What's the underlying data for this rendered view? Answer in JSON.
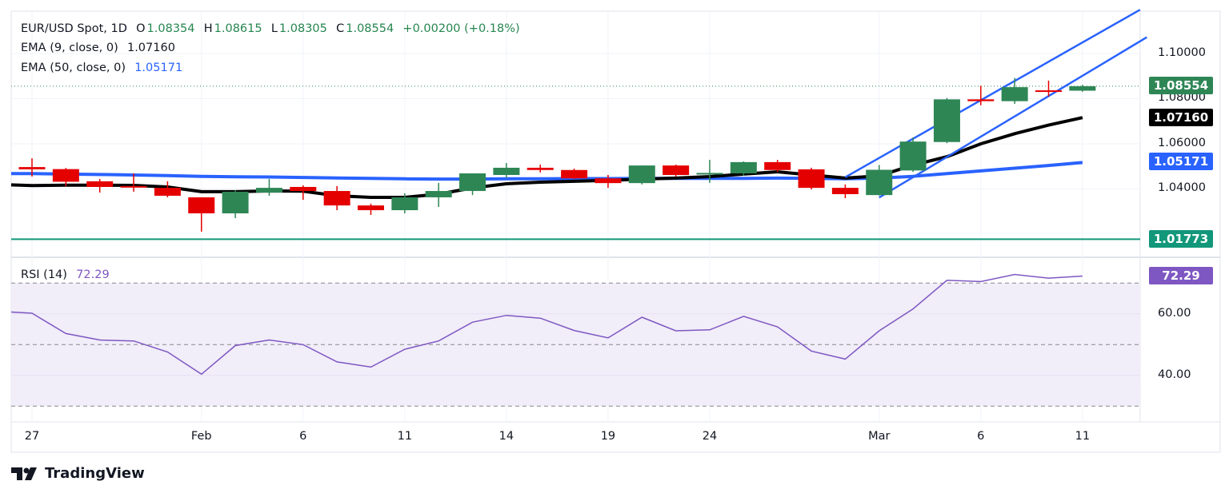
{
  "legend": {
    "symbol": "EUR/USD Spot, 1D",
    "open_label": "O",
    "open": "1.08354",
    "high_label": "H",
    "high": "1.08615",
    "low_label": "L",
    "low": "1.08305",
    "close_label": "C",
    "close": "1.08554",
    "change": "+0.00200 (+0.18%)",
    "ema9_label": "EMA (9, close, 0)",
    "ema9_value": "1.07160",
    "ema50_label": "EMA (50, close, 0)",
    "ema50_value": "1.05171",
    "rsi_label": "RSI (14)",
    "rsi_value": "72.29"
  },
  "price_axis": {
    "ticks": [
      "1.10000",
      "1.08000",
      "1.06000",
      "1.04000"
    ],
    "badges": {
      "last": "1.08554",
      "ema9": "1.07160",
      "ema50": "1.05171",
      "support": "1.01773"
    }
  },
  "rsi_axis": {
    "ticks": [
      "60.00",
      "40.00"
    ],
    "badge": "72.29"
  },
  "time_axis": {
    "labels": [
      "27",
      "Feb",
      "6",
      "11",
      "14",
      "19",
      "24",
      "Mar",
      "6",
      "11"
    ]
  },
  "colors": {
    "up": "#2e8655",
    "down": "#e50000",
    "ema9": "#000000",
    "ema50": "#2962ff",
    "channel": "#2962ff",
    "support": "#12977a",
    "rsi": "#7e57c2",
    "rsi_band": "#f1edf9"
  },
  "branding": {
    "logo_text": "TradingView"
  },
  "chart_data": [
    {
      "type": "candlestick",
      "title": "EUR/USD Spot, 1D",
      "x": [
        "Jan 27",
        "Jan 28",
        "Jan 29",
        "Jan 30",
        "Jan 31",
        "Feb 3",
        "Feb 4",
        "Feb 5",
        "Feb 6",
        "Feb 7",
        "Feb 10",
        "Feb 11",
        "Feb 12",
        "Feb 13",
        "Feb 14",
        "Feb 17",
        "Feb 18",
        "Feb 19",
        "Feb 20",
        "Feb 21",
        "Feb 24",
        "Feb 25",
        "Feb 26",
        "Feb 27",
        "Feb 28",
        "Mar 3",
        "Mar 4",
        "Mar 5",
        "Mar 6",
        "Mar 7",
        "Mar 10",
        "Mar 11"
      ],
      "ohlc": [
        [
          1.0497,
          1.0536,
          1.0455,
          1.0487
        ],
        [
          1.0488,
          1.0493,
          1.0412,
          1.0432
        ],
        [
          1.0434,
          1.0444,
          1.0384,
          1.0409
        ],
        [
          1.0413,
          1.0469,
          1.0388,
          1.0409
        ],
        [
          1.0405,
          1.0434,
          1.0363,
          1.037
        ],
        [
          1.0363,
          1.0363,
          1.0211,
          1.0292
        ],
        [
          1.0292,
          1.0395,
          1.0271,
          1.0388
        ],
        [
          1.0384,
          1.0444,
          1.037,
          1.0405
        ],
        [
          1.0409,
          1.0416,
          1.0352,
          1.0391
        ],
        [
          1.0391,
          1.0413,
          1.0306,
          1.0327
        ],
        [
          1.0327,
          1.0335,
          1.0285,
          1.0306
        ],
        [
          1.0306,
          1.0381,
          1.0292,
          1.0363
        ],
        [
          1.0363,
          1.0427,
          1.032,
          1.0391
        ],
        [
          1.0391,
          1.0469,
          1.0373,
          1.0469
        ],
        [
          1.0462,
          1.0515,
          1.0448,
          1.0494
        ],
        [
          1.0494,
          1.0508,
          1.0473,
          1.0484
        ],
        [
          1.0484,
          1.049,
          1.0444,
          1.0447
        ],
        [
          1.0447,
          1.0462,
          1.0405,
          1.0426
        ],
        [
          1.0426,
          1.0504,
          1.042,
          1.0504
        ],
        [
          1.0504,
          1.0508,
          1.0455,
          1.0462
        ],
        [
          1.0468,
          1.0529,
          1.0427,
          1.0471
        ],
        [
          1.0469,
          1.0522,
          1.0459,
          1.0519
        ],
        [
          1.0519,
          1.0529,
          1.0476,
          1.0484
        ],
        [
          1.0487,
          1.0494,
          1.0398,
          1.0405
        ],
        [
          1.0405,
          1.042,
          1.0359,
          1.0377
        ],
        [
          1.0373,
          1.0506,
          1.0371,
          1.0485
        ],
        [
          1.0482,
          1.0628,
          1.0476,
          1.061
        ],
        [
          1.0608,
          1.0803,
          1.0603,
          1.0797
        ],
        [
          1.0797,
          1.0857,
          1.0771,
          1.0789
        ],
        [
          1.0789,
          1.0892,
          1.0777,
          1.0851
        ],
        [
          1.0837,
          1.088,
          1.081,
          1.08354
        ],
        [
          1.08354,
          1.08615,
          1.08305,
          1.08554
        ]
      ],
      "series": [
        {
          "name": "EMA (9, close, 0)",
          "values": [
            1.0415,
            1.0417,
            1.0417,
            1.0416,
            1.0409,
            1.0388,
            1.0388,
            1.0391,
            1.039,
            1.037,
            1.0363,
            1.0363,
            1.0377,
            1.0405,
            1.0423,
            1.043,
            1.0434,
            1.0438,
            1.0444,
            1.0448,
            1.0455,
            1.0466,
            1.0476,
            1.0462,
            1.0448,
            1.0458,
            1.0506,
            1.0543,
            1.06,
            1.0645,
            1.0683,
            1.0716
          ]
        },
        {
          "name": "EMA (50, close, 0)",
          "values": [
            1.0468,
            1.0466,
            1.0464,
            1.0462,
            1.0459,
            1.0456,
            1.0454,
            1.0453,
            1.0451,
            1.0449,
            1.0447,
            1.0445,
            1.0444,
            1.0444,
            1.0445,
            1.0445,
            1.0446,
            1.0446,
            1.0447,
            1.0447,
            1.0447,
            1.0447,
            1.0448,
            1.0447,
            1.0445,
            1.0448,
            1.0456,
            1.0468,
            1.048,
            1.0492,
            1.0504,
            1.05171
          ]
        }
      ],
      "channel": {
        "upper": {
          "from": {
            "x": "Feb 28",
            "y": 1.0452
          },
          "slope_per_bar": 0.00853
        },
        "lower": {
          "from": {
            "x": "Mar 3",
            "y": 1.0362
          },
          "slope_per_bar": 0.00899
        }
      },
      "horizontal_line": 1.01773,
      "last_price": 1.08554,
      "ylim": [
        1.015,
        1.12
      ],
      "yticks": [
        1.1,
        1.08,
        1.06,
        1.04
      ],
      "grid": true
    },
    {
      "type": "line",
      "title": "RSI (14)",
      "x": [
        "Jan 27",
        "Jan 28",
        "Jan 29",
        "Jan 30",
        "Jan 31",
        "Feb 3",
        "Feb 4",
        "Feb 5",
        "Feb 6",
        "Feb 7",
        "Feb 10",
        "Feb 11",
        "Feb 12",
        "Feb 13",
        "Feb 14",
        "Feb 17",
        "Feb 18",
        "Feb 19",
        "Feb 20",
        "Feb 21",
        "Feb 24",
        "Feb 25",
        "Feb 26",
        "Feb 27",
        "Feb 28",
        "Mar 3",
        "Mar 4",
        "Mar 5",
        "Mar 6",
        "Mar 7",
        "Mar 10",
        "Mar 11"
      ],
      "values": [
        60.2,
        53.6,
        51.5,
        51.2,
        47.6,
        40.4,
        49.7,
        51.5,
        50.0,
        44.4,
        42.7,
        48.5,
        51.2,
        57.3,
        59.5,
        58.6,
        54.6,
        52.2,
        58.9,
        54.5,
        54.8,
        59.2,
        55.8,
        47.9,
        45.3,
        54.5,
        61.6,
        70.9,
        70.5,
        72.8,
        71.6,
        72.29
      ],
      "bands": [
        70,
        50,
        30
      ],
      "yticks": [
        60,
        40
      ],
      "grid": true
    }
  ]
}
